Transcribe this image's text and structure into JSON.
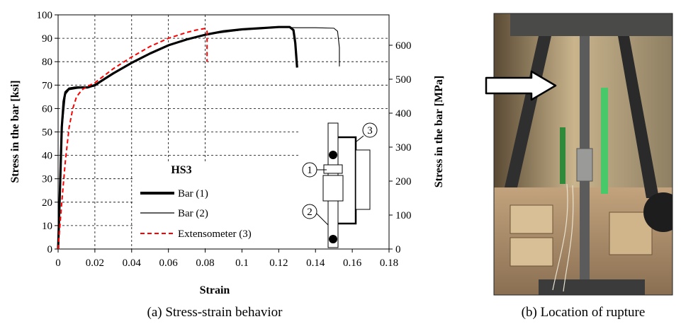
{
  "chart_data": {
    "type": "line",
    "title": "",
    "xlabel": "Strain",
    "ylabel_left": "Stress in the bar [ksi]",
    "ylabel_right": "Stress in the bar [MPa]",
    "xlim": [
      0,
      0.18
    ],
    "ylim_left": [
      0,
      100
    ],
    "ylim_right": [
      0,
      689.5
    ],
    "x_ticks": [
      "0",
      "0.02",
      "0.04",
      "0.06",
      "0.08",
      "0.1",
      "0.12",
      "0.14",
      "0.16",
      "0.18"
    ],
    "y_ticks_left": [
      "0",
      "10",
      "20",
      "30",
      "40",
      "50",
      "60",
      "70",
      "80",
      "90",
      "100"
    ],
    "y_ticks_right": [
      "0",
      "100",
      "200",
      "300",
      "400",
      "500",
      "600"
    ],
    "grid": "dashed major gridlines in left region",
    "legend_title": "HS3",
    "legend_placement": "lower-center",
    "series": [
      {
        "name": "Bar (1)",
        "style": "thick-solid",
        "color": "#000000",
        "points": [
          [
            0,
            0
          ],
          [
            0.001,
            25
          ],
          [
            0.002,
            52
          ],
          [
            0.003,
            63
          ],
          [
            0.004,
            67
          ],
          [
            0.006,
            68.5
          ],
          [
            0.01,
            69
          ],
          [
            0.016,
            69
          ],
          [
            0.02,
            70
          ],
          [
            0.025,
            72.5
          ],
          [
            0.03,
            75
          ],
          [
            0.04,
            79.5
          ],
          [
            0.05,
            83.5
          ],
          [
            0.06,
            87
          ],
          [
            0.07,
            89.5
          ],
          [
            0.08,
            91.5
          ],
          [
            0.09,
            93
          ],
          [
            0.1,
            93.8
          ],
          [
            0.11,
            94.3
          ],
          [
            0.12,
            94.8
          ],
          [
            0.126,
            94.8
          ],
          [
            0.128,
            93.5
          ],
          [
            0.129,
            88
          ],
          [
            0.13,
            77.5
          ]
        ]
      },
      {
        "name": "Bar (2)",
        "style": "thin-solid",
        "color": "#000000",
        "points": [
          [
            0,
            0
          ],
          [
            0.002,
            50
          ],
          [
            0.004,
            66
          ],
          [
            0.006,
            68
          ],
          [
            0.01,
            68.5
          ],
          [
            0.02,
            69.5
          ],
          [
            0.03,
            75
          ],
          [
            0.04,
            79.5
          ],
          [
            0.06,
            87
          ],
          [
            0.08,
            91.5
          ],
          [
            0.1,
            93.5
          ],
          [
            0.12,
            94.7
          ],
          [
            0.13,
            94.5
          ],
          [
            0.14,
            94.5
          ],
          [
            0.15,
            94.3
          ],
          [
            0.152,
            93
          ],
          [
            0.153,
            86
          ],
          [
            0.153,
            78
          ]
        ]
      },
      {
        "name": "Extensometer (3)",
        "style": "dashed",
        "color": "#ff0000",
        "points": [
          [
            0,
            0
          ],
          [
            0.002,
            20
          ],
          [
            0.004,
            38
          ],
          [
            0.006,
            52
          ],
          [
            0.008,
            60
          ],
          [
            0.01,
            65
          ],
          [
            0.013,
            68
          ],
          [
            0.016,
            69.5
          ],
          [
            0.02,
            71
          ],
          [
            0.025,
            74
          ],
          [
            0.03,
            77
          ],
          [
            0.04,
            82
          ],
          [
            0.05,
            86.5
          ],
          [
            0.06,
            90
          ],
          [
            0.07,
            92.5
          ],
          [
            0.075,
            93.5
          ],
          [
            0.08,
            94.2
          ],
          [
            0.081,
            93
          ],
          [
            0.081,
            80
          ]
        ]
      }
    ],
    "diagram_labels": [
      "1",
      "2",
      "3"
    ]
  },
  "captions": {
    "a": "(a) Stress-strain behavior",
    "b": "(b) Location of rupture"
  },
  "colors": {
    "axis": "#000000",
    "grid": "#000000",
    "extensometer": "#ff0000"
  }
}
